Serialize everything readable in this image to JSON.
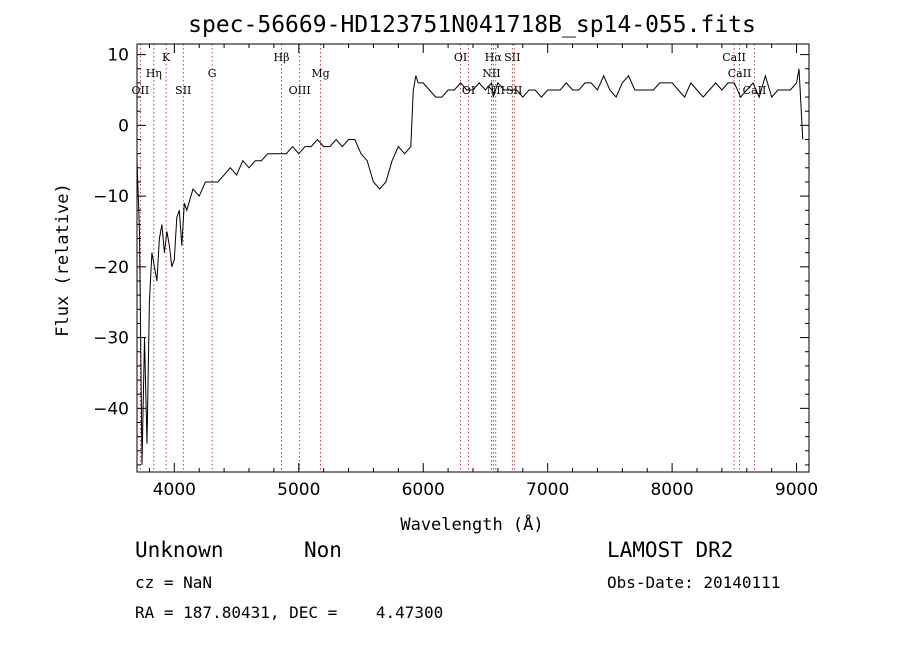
{
  "chart_data": {
    "type": "line",
    "title": "spec-56669-HD123751N041718B_sp14-055.fits",
    "xlabel": "Wavelength (Å)",
    "ylabel": "Flux (relative)",
    "xlim": [
      3700,
      9100
    ],
    "ylim": [
      -49,
      11.5
    ],
    "x_ticks": [
      4000,
      5000,
      6000,
      7000,
      8000,
      9000
    ],
    "y_ticks": [
      10,
      0,
      -10,
      -20,
      -30,
      -40
    ],
    "grid": false,
    "series": [
      {
        "x": [
          3700,
          3720,
          3740,
          3760,
          3780,
          3800,
          3820,
          3840,
          3860,
          3880,
          3900,
          3920,
          3940,
          3960,
          3980,
          4000,
          4020,
          4040,
          4060,
          4080,
          4100,
          4150,
          4200,
          4250,
          4300,
          4350,
          4400,
          4450,
          4500,
          4550,
          4600,
          4650,
          4700,
          4750,
          4800,
          4850,
          4900,
          4950,
          5000,
          5050,
          5100,
          5150,
          5200,
          5250,
          5300,
          5350,
          5400,
          5450,
          5500,
          5550,
          5600,
          5650,
          5700,
          5750,
          5800,
          5850,
          5900,
          5920,
          5940,
          5960,
          6000,
          6050,
          6100,
          6150,
          6200,
          6250,
          6300,
          6350,
          6400,
          6450,
          6500,
          6550,
          6562,
          6600,
          6650,
          6700,
          6750,
          6800,
          6850,
          6900,
          6950,
          7000,
          7050,
          7100,
          7150,
          7200,
          7250,
          7300,
          7350,
          7400,
          7450,
          7500,
          7550,
          7600,
          7650,
          7700,
          7750,
          7800,
          7850,
          7900,
          7950,
          8000,
          8050,
          8100,
          8150,
          8200,
          8250,
          8300,
          8350,
          8400,
          8450,
          8500,
          8550,
          8600,
          8650,
          8700,
          8750,
          8800,
          8850,
          8900,
          8950,
          9000,
          9020,
          9050
        ],
        "y": [
          -5,
          -15,
          -48,
          -30,
          -45,
          -25,
          -18,
          -20,
          -22,
          -16,
          -14,
          -18,
          -15,
          -17,
          -20,
          -19,
          -13,
          -12,
          -17,
          -11,
          -12,
          -9,
          -10,
          -8,
          -8,
          -8,
          -7,
          -6,
          -7,
          -5,
          -6,
          -5,
          -5,
          -4,
          -4,
          -4,
          -4,
          -3,
          -4,
          -3,
          -3,
          -2,
          -3,
          -3,
          -2,
          -3,
          -2,
          -2,
          -4,
          -5,
          -8,
          -9,
          -8,
          -5,
          -3,
          -4,
          -3,
          5,
          7,
          6,
          6,
          5,
          4,
          4,
          5,
          5,
          6,
          5,
          5,
          6,
          5,
          6,
          4,
          6,
          5,
          5,
          5,
          4,
          5,
          5,
          4,
          5,
          5,
          5,
          6,
          5,
          5,
          6,
          6,
          5,
          7,
          5,
          4,
          6,
          7,
          5,
          5,
          5,
          5,
          6,
          6,
          6,
          5,
          4,
          6,
          5,
          4,
          5,
          6,
          5,
          6,
          6,
          4,
          5,
          6,
          4,
          7,
          4,
          5,
          5,
          5,
          6,
          8,
          -2
        ]
      }
    ],
    "lines": [
      {
        "label": "OII",
        "x": 3727,
        "row": 3
      },
      {
        "label": "Hη",
        "x": 3835,
        "row": 2
      },
      {
        "label": "K",
        "x": 3934,
        "row": 1
      },
      {
        "label": "SII",
        "x": 4072,
        "row": 3
      },
      {
        "label": "G",
        "x": 4304,
        "row": 2
      },
      {
        "label": "Hβ",
        "x": 4861,
        "row": 1
      },
      {
        "label": "OIII",
        "x": 5007,
        "row": 3
      },
      {
        "label": "Mg",
        "x": 5175,
        "row": 2
      },
      {
        "label": "OI",
        "x": 6300,
        "row": 1
      },
      {
        "label": "OI",
        "x": 6364,
        "row": 3
      },
      {
        "label": "NII",
        "x": 6548,
        "row": 2
      },
      {
        "label": "Hα",
        "x": 6563,
        "row": 1
      },
      {
        "label": "NII",
        "x": 6583,
        "row": 3
      },
      {
        "label": "SII",
        "x": 6716,
        "row": 1
      },
      {
        "label": "SII",
        "x": 6731,
        "row": 3
      },
      {
        "label": "CaII",
        "x": 8498,
        "row": 1
      },
      {
        "label": "CaII",
        "x": 8542,
        "row": 2
      },
      {
        "label": "CaII",
        "x": 8662,
        "row": 3
      }
    ]
  },
  "info": {
    "class": "Unknown",
    "subclass": "Non",
    "survey": "LAMOST DR2",
    "cz": "cz = NaN",
    "obs_date": "Obs-Date: 20140111",
    "coords": "RA = 187.80431, DEC =    4.47300"
  }
}
